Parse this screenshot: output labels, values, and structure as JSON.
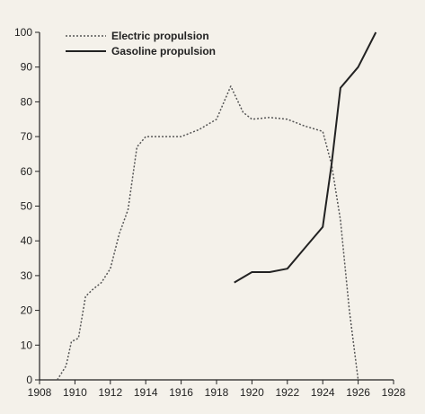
{
  "chart_data": {
    "type": "line",
    "title": "",
    "xlabel": "",
    "ylabel": "",
    "xlim": [
      1908,
      1928
    ],
    "ylim": [
      0,
      100
    ],
    "xticks": [
      1908,
      1910,
      1912,
      1914,
      1916,
      1918,
      1920,
      1922,
      1924,
      1926,
      1928
    ],
    "yticks": [
      0,
      10,
      20,
      30,
      40,
      50,
      60,
      70,
      80,
      90,
      100
    ],
    "grid": false,
    "legend": "top-left",
    "series": [
      {
        "name": "Electric propulsion",
        "style": "dotted",
        "color": "#555555",
        "points": [
          [
            1909.0,
            0
          ],
          [
            1909.5,
            4
          ],
          [
            1909.8,
            11
          ],
          [
            1910.2,
            12
          ],
          [
            1910.6,
            24
          ],
          [
            1911.0,
            26
          ],
          [
            1911.5,
            28
          ],
          [
            1912.0,
            32
          ],
          [
            1912.5,
            42
          ],
          [
            1913.0,
            49
          ],
          [
            1913.5,
            67
          ],
          [
            1914.0,
            70
          ],
          [
            1915.0,
            70
          ],
          [
            1916.0,
            70
          ],
          [
            1917.0,
            72
          ],
          [
            1918.0,
            75
          ],
          [
            1918.8,
            84.5
          ],
          [
            1919.5,
            77
          ],
          [
            1920.0,
            75
          ],
          [
            1921.0,
            75.5
          ],
          [
            1922.0,
            75
          ],
          [
            1923.0,
            73
          ],
          [
            1924.0,
            71.5
          ],
          [
            1924.5,
            62
          ],
          [
            1925.0,
            46
          ],
          [
            1925.5,
            20
          ],
          [
            1926.0,
            0
          ]
        ]
      },
      {
        "name": "Gasoline propulsion",
        "style": "solid",
        "color": "#222222",
        "points": [
          [
            1919.0,
            28
          ],
          [
            1920.0,
            31
          ],
          [
            1921.0,
            31
          ],
          [
            1922.0,
            32
          ],
          [
            1923.0,
            38
          ],
          [
            1924.0,
            44
          ],
          [
            1924.5,
            62
          ],
          [
            1925.0,
            84
          ],
          [
            1926.0,
            90
          ],
          [
            1927.0,
            100
          ]
        ]
      }
    ]
  }
}
